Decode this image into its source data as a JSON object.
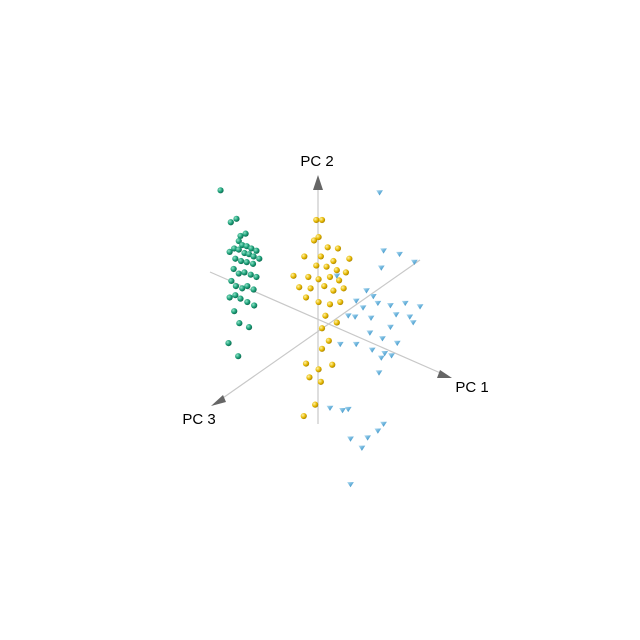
{
  "chart_data": {
    "type": "scatter",
    "title": "",
    "axes": [
      {
        "label": "PC 1"
      },
      {
        "label": "PC 2"
      },
      {
        "label": "PC 3"
      }
    ],
    "colors": {
      "axis_line": "#c8c8c8",
      "arrow": "#666666",
      "green": "#1a9e77",
      "yellow": "#e6b800",
      "blue": "#5aa9d6"
    },
    "series": [
      {
        "marker": "sphere",
        "color": "#1a9e77",
        "points": [
          [
            -1.71,
            2.31
          ],
          [
            -1.53,
            1.75
          ],
          [
            -1.43,
            1.81
          ],
          [
            -1.36,
            1.51
          ],
          [
            -1.27,
            1.55
          ],
          [
            -1.39,
            1.42
          ],
          [
            -1.33,
            1.35
          ],
          [
            -1.25,
            1.33
          ],
          [
            -1.17,
            1.29
          ],
          [
            -1.08,
            1.25
          ],
          [
            -1.47,
            1.29
          ],
          [
            -1.39,
            1.27
          ],
          [
            -1.29,
            1.21
          ],
          [
            -1.21,
            1.19
          ],
          [
            -1.13,
            1.15
          ],
          [
            -1.55,
            1.23
          ],
          [
            -1.03,
            1.11
          ],
          [
            -1.45,
            1.11
          ],
          [
            -1.35,
            1.07
          ],
          [
            -1.25,
            1.05
          ],
          [
            -1.14,
            1.02
          ],
          [
            -1.48,
            0.93
          ],
          [
            -1.39,
            0.85
          ],
          [
            -1.29,
            0.87
          ],
          [
            -1.18,
            0.83
          ],
          [
            -1.08,
            0.79
          ],
          [
            -1.52,
            0.72
          ],
          [
            -1.44,
            0.63
          ],
          [
            -1.33,
            0.59
          ],
          [
            -1.24,
            0.63
          ],
          [
            -1.13,
            0.57
          ],
          [
            -1.55,
            0.43
          ],
          [
            -1.45,
            0.47
          ],
          [
            -1.36,
            0.41
          ],
          [
            -1.24,
            0.35
          ],
          [
            -1.12,
            0.29
          ],
          [
            -1.47,
            0.19
          ],
          [
            -1.38,
            -0.02
          ],
          [
            -1.21,
            -0.09
          ],
          [
            -1.57,
            -0.37
          ],
          [
            -1.4,
            -0.6
          ]
        ]
      },
      {
        "marker": "sphere",
        "color": "#e6b800",
        "points": [
          [
            -0.03,
            1.79
          ],
          [
            0.07,
            1.79
          ],
          [
            -0.07,
            1.43
          ],
          [
            0.01,
            1.49
          ],
          [
            0.17,
            1.31
          ],
          [
            0.35,
            1.29
          ],
          [
            -0.24,
            1.15
          ],
          [
            0.05,
            1.15
          ],
          [
            0.27,
            1.07
          ],
          [
            0.55,
            1.11
          ],
          [
            -0.03,
            0.99
          ],
          [
            0.15,
            0.97
          ],
          [
            0.33,
            0.91
          ],
          [
            0.49,
            0.87
          ],
          [
            -0.43,
            0.81
          ],
          [
            -0.17,
            0.79
          ],
          [
            0.01,
            0.75
          ],
          [
            0.21,
            0.79
          ],
          [
            0.37,
            0.73
          ],
          [
            -0.33,
            0.61
          ],
          [
            -0.13,
            0.59
          ],
          [
            0.11,
            0.63
          ],
          [
            0.27,
            0.55
          ],
          [
            0.45,
            0.59
          ],
          [
            -0.21,
            0.43
          ],
          [
            0.01,
            0.35
          ],
          [
            0.21,
            0.31
          ],
          [
            0.39,
            0.35
          ],
          [
            0.13,
            0.11
          ],
          [
            0.33,
            -0.01
          ],
          [
            0.07,
            -0.11
          ],
          [
            0.19,
            -0.33
          ],
          [
            0.07,
            -0.47
          ],
          [
            -0.21,
            -0.73
          ],
          [
            0.01,
            -0.83
          ],
          [
            0.25,
            -0.75
          ],
          [
            -0.15,
            -0.97
          ],
          [
            0.05,
            -1.05
          ],
          [
            -0.05,
            -1.45
          ],
          [
            -0.25,
            -1.65
          ]
        ]
      },
      {
        "marker": "cone",
        "color": "#5aa9d6",
        "points": [
          [
            1.08,
            2.27
          ],
          [
            1.15,
            1.25
          ],
          [
            1.43,
            1.19
          ],
          [
            1.69,
            1.05
          ],
          [
            1.11,
            0.95
          ],
          [
            0.33,
            0.81
          ],
          [
            0.85,
            0.55
          ],
          [
            0.97,
            0.45
          ],
          [
            0.67,
            0.37
          ],
          [
            0.79,
            0.25
          ],
          [
            1.05,
            0.33
          ],
          [
            1.27,
            0.29
          ],
          [
            1.53,
            0.33
          ],
          [
            1.79,
            0.27
          ],
          [
            0.53,
            0.11
          ],
          [
            0.65,
            0.09
          ],
          [
            0.93,
            0.07
          ],
          [
            1.37,
            0.13
          ],
          [
            1.61,
            0.09
          ],
          [
            1.67,
            -0.01
          ],
          [
            1.27,
            -0.09
          ],
          [
            0.91,
            -0.19
          ],
          [
            1.13,
            -0.29
          ],
          [
            1.39,
            -0.37
          ],
          [
            0.39,
            -0.39
          ],
          [
            0.67,
            -0.39
          ],
          [
            0.95,
            -0.49
          ],
          [
            1.17,
            -0.55
          ],
          [
            1.29,
            -0.59
          ],
          [
            1.11,
            -0.63
          ],
          [
            1.07,
            -0.89
          ],
          [
            0.21,
            -1.51
          ],
          [
            0.43,
            -1.55
          ],
          [
            0.53,
            -1.53
          ],
          [
            1.15,
            -1.79
          ],
          [
            1.05,
            -1.91
          ],
          [
            0.87,
            -2.03
          ],
          [
            0.57,
            -2.05
          ],
          [
            0.77,
            -2.21
          ],
          [
            0.57,
            -2.85
          ]
        ]
      }
    ]
  }
}
